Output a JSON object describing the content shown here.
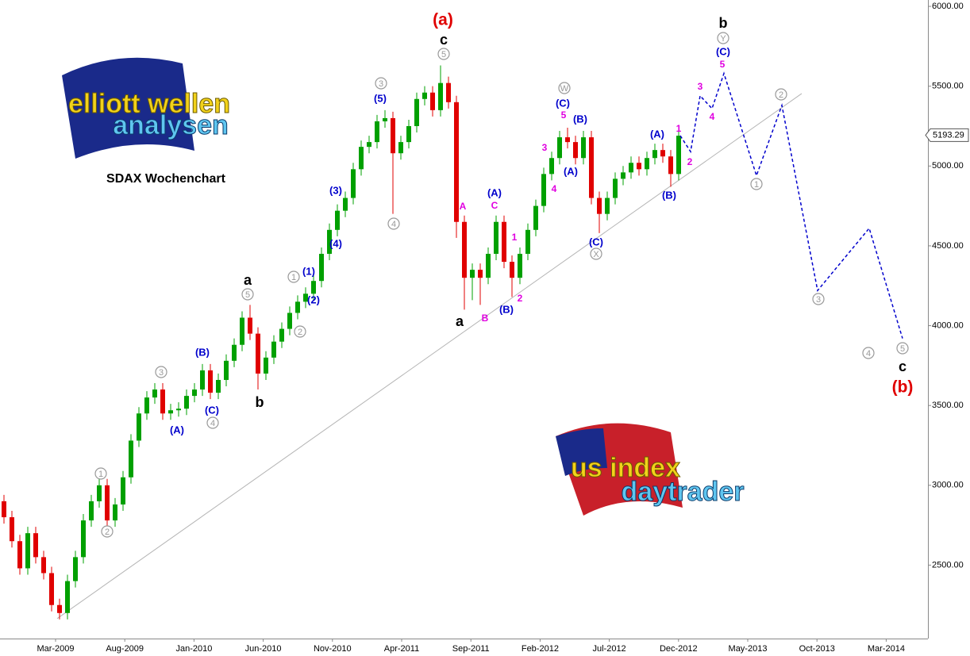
{
  "chart_data": {
    "type": "candlestick",
    "title": "SDAX Wochenchart",
    "up_color": "#00a000",
    "down_color": "#e00000",
    "ylim": [
      2040,
      6040
    ],
    "yticks": [
      {
        "value": 2500,
        "label": "2500.00"
      },
      {
        "value": 3000,
        "label": "3000.00"
      },
      {
        "value": 3500,
        "label": "3500.00"
      },
      {
        "value": 4000,
        "label": "4000.00"
      },
      {
        "value": 4500,
        "label": "4500.00"
      },
      {
        "value": 5000,
        "label": "5000.00"
      },
      {
        "value": 5500,
        "label": "5500.00"
      },
      {
        "value": 6000,
        "label": "6000.00"
      }
    ],
    "x_labels": [
      "Mar-2009",
      "Aug-2009",
      "Jan-2010",
      "Jun-2010",
      "Nov-2010",
      "Apr-2011",
      "Sep-2011",
      "Feb-2012",
      "Jul-2012",
      "Dec-2012",
      "May-2013",
      "Oct-2013",
      "Mar-2014"
    ],
    "series": {
      "open": [
        2900,
        2800,
        2650,
        2480,
        2700,
        2550,
        2450,
        2250,
        2200,
        2400,
        2550,
        2780,
        2900,
        3000,
        2780,
        2880,
        3050,
        3280,
        3450,
        3550,
        3600,
        3450,
        3470,
        3480,
        3560,
        3600,
        3720,
        3580,
        3660,
        3780,
        3880,
        4050,
        3950,
        3700,
        3800,
        3900,
        3980,
        4080,
        4150,
        4200,
        4280,
        4450,
        4600,
        4720,
        4800,
        4980,
        5120,
        5150,
        5280,
        5300,
        5080,
        5150,
        5250,
        5420,
        5460,
        5350,
        5520,
        5400,
        4650,
        4300,
        4350,
        4300,
        4450,
        4650,
        4400,
        4300,
        4450,
        4600,
        4750,
        4950,
        5050,
        5180,
        5150,
        5050,
        5180,
        4800,
        4700,
        4800,
        4920,
        4960,
        5020,
        4980,
        5050,
        5100,
        5060,
        4950
      ],
      "high": [
        2940,
        2840,
        2690,
        2740,
        2740,
        2590,
        2490,
        2290,
        2440,
        2590,
        2820,
        2940,
        3040,
        3040,
        2920,
        3090,
        3320,
        3490,
        3590,
        3640,
        3640,
        3510,
        3520,
        3600,
        3640,
        3760,
        3760,
        3700,
        3820,
        3920,
        4090,
        4130,
        3990,
        3840,
        3940,
        4020,
        4120,
        4190,
        4240,
        4320,
        4490,
        4640,
        4760,
        4840,
        5020,
        5160,
        5190,
        5320,
        5350,
        5340,
        5190,
        5290,
        5460,
        5500,
        5500,
        5630,
        5560,
        5440,
        4690,
        4390,
        4390,
        4490,
        4690,
        4690,
        4440,
        4490,
        4640,
        4790,
        4990,
        5090,
        5220,
        5240,
        5190,
        5220,
        5220,
        4840,
        4840,
        4960,
        5000,
        5060,
        5060,
        5090,
        5140,
        5140,
        5100,
        5230
      ],
      "low": [
        2760,
        2610,
        2440,
        2440,
        2510,
        2410,
        2210,
        2160,
        2160,
        2360,
        2510,
        2740,
        2860,
        2740,
        2740,
        2840,
        3010,
        3240,
        3410,
        3510,
        3410,
        3410,
        3430,
        3440,
        3520,
        3560,
        3540,
        3540,
        3620,
        3740,
        3840,
        3910,
        3600,
        3660,
        3760,
        3860,
        3940,
        4040,
        4110,
        4160,
        4240,
        4410,
        4560,
        4680,
        4760,
        4940,
        5080,
        5110,
        5240,
        4700,
        5040,
        5110,
        5210,
        5380,
        5310,
        5310,
        5360,
        4550,
        4100,
        4160,
        4130,
        4260,
        4410,
        4360,
        4180,
        4260,
        4410,
        4560,
        4710,
        4910,
        5010,
        5110,
        5010,
        5010,
        4760,
        4580,
        4660,
        4760,
        4880,
        4920,
        4940,
        4940,
        5010,
        5020,
        4870,
        4910
      ],
      "close": [
        2800,
        2650,
        2480,
        2700,
        2550,
        2450,
        2250,
        2200,
        2400,
        2550,
        2780,
        2900,
        3000,
        2780,
        2880,
        3050,
        3280,
        3450,
        3550,
        3600,
        3450,
        3470,
        3480,
        3560,
        3600,
        3720,
        3580,
        3660,
        3780,
        3880,
        4050,
        3950,
        3700,
        3800,
        3900,
        3980,
        4080,
        4150,
        4200,
        4280,
        4450,
        4600,
        4720,
        4800,
        4980,
        5120,
        5150,
        5280,
        5300,
        5080,
        5150,
        5250,
        5420,
        5460,
        5350,
        5520,
        5400,
        4650,
        4300,
        4350,
        4300,
        4450,
        4650,
        4400,
        4300,
        4450,
        4600,
        4750,
        4950,
        5050,
        5180,
        5150,
        5050,
        5180,
        4800,
        4700,
        4800,
        4920,
        4960,
        5020,
        4980,
        5050,
        5100,
        5060,
        4950,
        5190
      ]
    },
    "last_price": 5193.29,
    "trendline": {
      "color": "#b4b4b4",
      "values": [
        2165,
        5454
      ]
    },
    "projection": {
      "color": "#0000cc",
      "values": [
        5190,
        5090,
        5440,
        5360,
        5580,
        4940,
        5380,
        4220,
        4610,
        3920
      ]
    },
    "annotations": [
      "(a)",
      "(b)",
      "c",
      "b",
      "a",
      "b",
      "a",
      "c",
      "5",
      "3",
      "4",
      "Y",
      "W",
      "X",
      "5",
      "1",
      "2",
      "3",
      "4",
      "1",
      "2",
      "2",
      "1",
      "3",
      "4",
      "5",
      "(5)",
      "(3)",
      "(4)",
      "(1)",
      "(2)",
      "(B)",
      "(C)",
      "(A)",
      "(A)",
      "(B)",
      "(C)",
      "(B)",
      "(A)",
      "(C)",
      "(A)",
      "(B)",
      "(C)",
      "A",
      "C",
      "B",
      "1",
      "2",
      "5",
      "3",
      "4",
      "1",
      "2",
      "3",
      "4",
      "5"
    ],
    "logos": [
      "elliott wellen",
      "analysen",
      "us index",
      "daytrader"
    ]
  }
}
